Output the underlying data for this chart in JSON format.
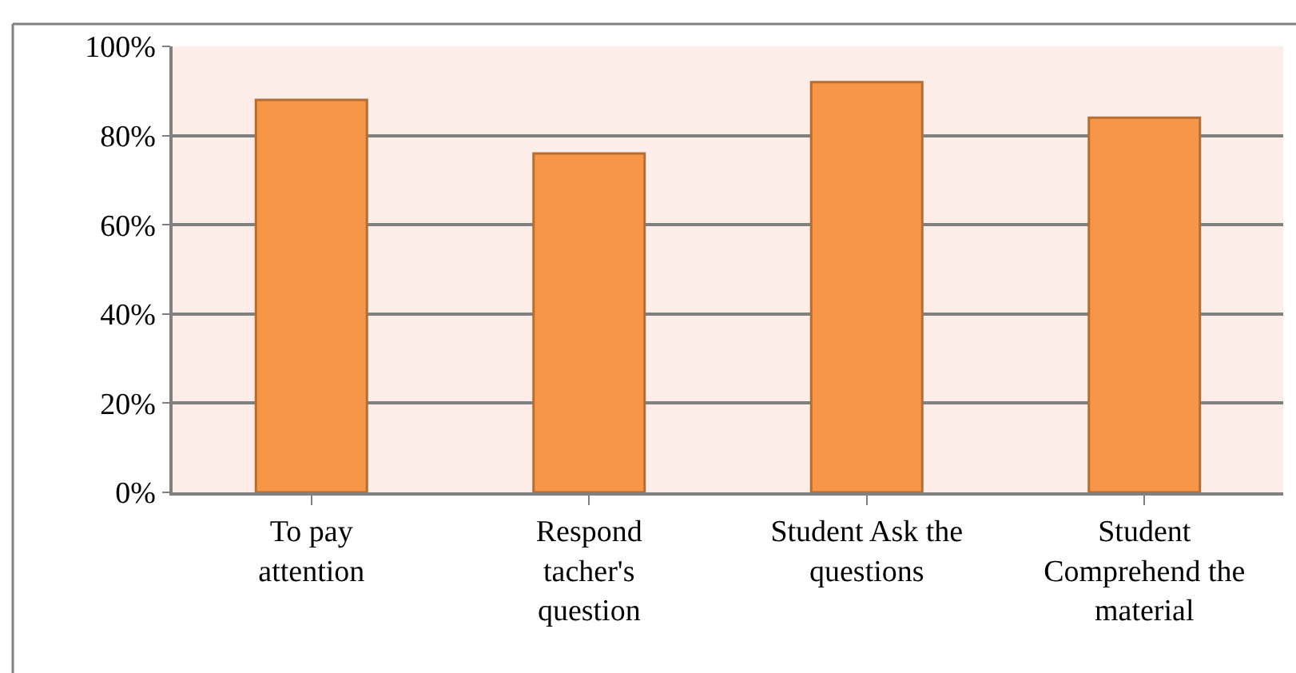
{
  "chart_data": {
    "type": "bar",
    "categories": [
      "To pay attention",
      "Respond tacher's question",
      "Student Ask the questions",
      "Student Comprehend the material"
    ],
    "values": [
      88,
      76,
      92,
      84
    ],
    "color": "#f79646",
    "ylim": [
      0,
      100
    ],
    "yticks": [
      {
        "value": 0,
        "label": "0%"
      },
      {
        "value": 20,
        "label": "20%"
      },
      {
        "value": 40,
        "label": "40%"
      },
      {
        "value": 60,
        "label": "60%"
      },
      {
        "value": 80,
        "label": "80%"
      },
      {
        "value": 100,
        "label": "100%"
      }
    ],
    "grid": "y"
  }
}
